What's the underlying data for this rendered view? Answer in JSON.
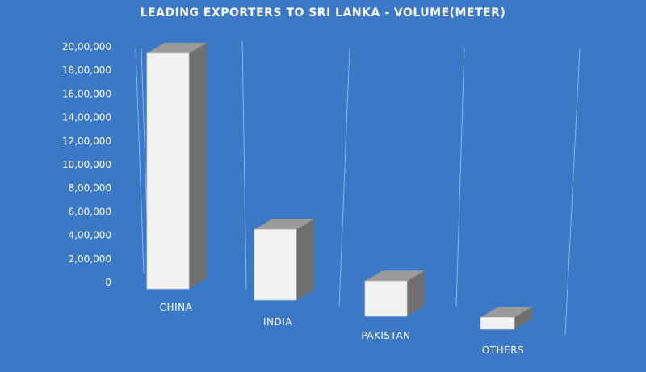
{
  "colors": {
    "background": "#3b78c6",
    "bar_front": "#f2f2f2",
    "bar_top": "#9b9b9b",
    "bar_side": "#6f6f6f",
    "text": "#ffffff"
  },
  "chart_data": {
    "type": "bar",
    "title": "LEADING EXPORTERS TO SRI LANKA - VOLUME(METER)",
    "categories": [
      "CHINA",
      "INDIA",
      "PAKISTAN",
      "OTHERS"
    ],
    "values": [
      2000000,
      600000,
      300000,
      100000
    ],
    "ylim": [
      0,
      2000000
    ],
    "yticks": [
      "0",
      "2,00,000",
      "4,00,000",
      "6,00,000",
      "8,00,000",
      "10,00,000",
      "12,00,000",
      "14,00,000",
      "16,00,000",
      "18,00,000",
      "20,00,000"
    ],
    "xlabel": "",
    "ylabel": "",
    "grid": true,
    "legend": "none"
  }
}
